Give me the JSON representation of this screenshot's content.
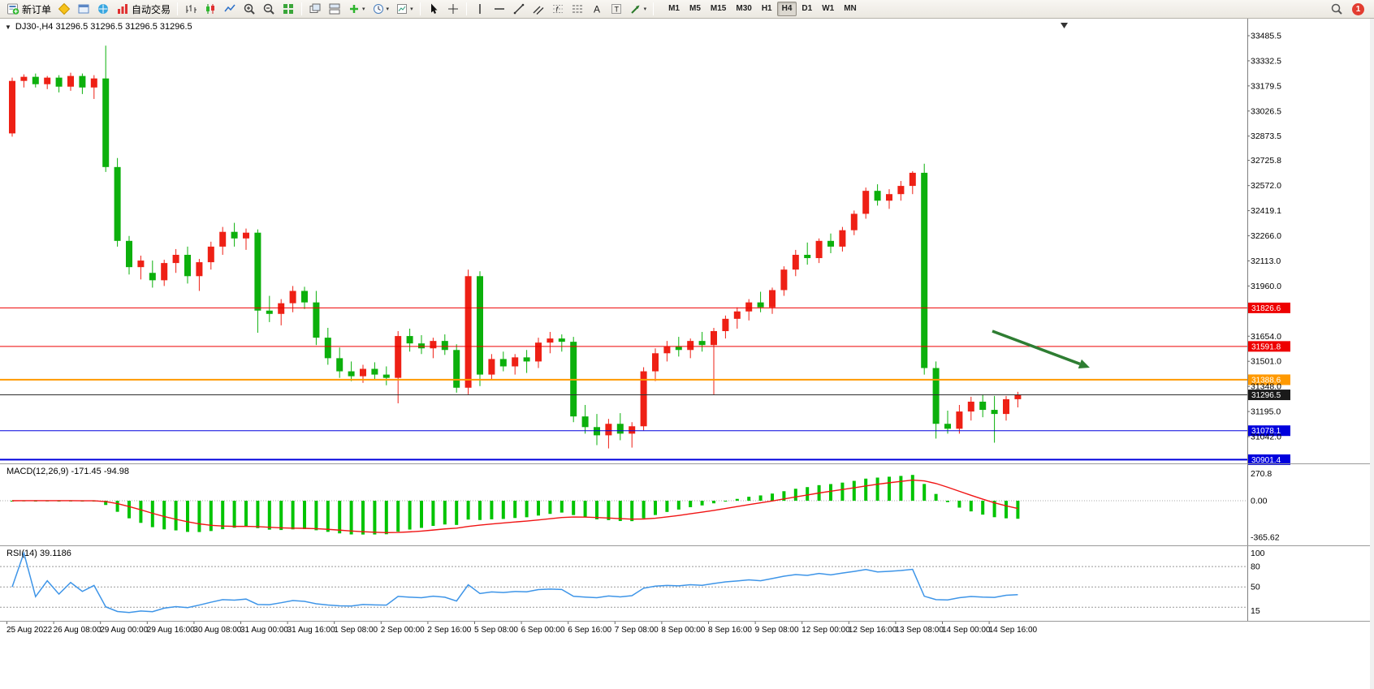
{
  "toolbar": {
    "items": [
      {
        "name": "new-order-button",
        "icon": "new-order",
        "label": "新订单"
      },
      {
        "name": "metaeditor-button",
        "icon": "metaeditor"
      },
      {
        "name": "terminal-button",
        "icon": "terminal"
      },
      {
        "name": "market-watch-button",
        "icon": "market-watch"
      },
      {
        "name": "auto-trading-button",
        "icon": "auto-trading",
        "label": "自动交易"
      },
      {
        "sep": true
      },
      {
        "name": "bar-chart-button",
        "icon": "bars-chart"
      },
      {
        "name": "candle-chart-button",
        "icon": "candles-chart"
      },
      {
        "name": "line-chart-button",
        "icon": "line-chart"
      },
      {
        "name": "zoom-in-button",
        "icon": "zoom-in"
      },
      {
        "name": "zoom-out-button",
        "icon": "zoom-out"
      },
      {
        "name": "tile-windows-button",
        "icon": "tile"
      },
      {
        "sep": true
      },
      {
        "name": "arrange-windows-button",
        "icon": "arrange-1"
      },
      {
        "name": "tile-horizontal-button",
        "icon": "arrange-2"
      },
      {
        "name": "indicators-button",
        "icon": "add-indicator",
        "caret": true
      },
      {
        "name": "periods-button",
        "icon": "periods",
        "caret": true
      },
      {
        "name": "templates-button",
        "icon": "templates",
        "caret": true
      },
      {
        "sep": true
      },
      {
        "name": "cursor-button",
        "icon": "cursor"
      },
      {
        "name": "crosshair-button",
        "icon": "crosshair"
      },
      {
        "sep": true
      },
      {
        "name": "vertical-line-button",
        "icon": "vline"
      },
      {
        "name": "horizontal-line-button",
        "icon": "hline"
      },
      {
        "name": "trendline-button",
        "icon": "trendline"
      },
      {
        "name": "channel-button",
        "icon": "channel"
      },
      {
        "name": "fibonacci-button",
        "icon": "fibo"
      },
      {
        "name": "cycle-lines-button",
        "icon": "grid-lines"
      },
      {
        "name": "text-button",
        "icon": "text-a"
      },
      {
        "name": "text-label-button",
        "icon": "label-t"
      },
      {
        "name": "arrows-button",
        "icon": "arrow-tool",
        "caret": true
      },
      {
        "sep": true
      }
    ],
    "timeframes": {
      "options": [
        "M1",
        "M5",
        "M15",
        "M30",
        "H1",
        "H4",
        "D1",
        "W1",
        "MN"
      ],
      "active": "H4"
    },
    "notification_badge": "1"
  },
  "chart": {
    "symbol_title": "DJ30-,H4 31296.5 31296.5 31296.5 31296.5",
    "colors": {
      "bull": "#ee2015",
      "bear": "#0cb00c",
      "macd_histogram": "#00c400",
      "macd_signal": "#f01414",
      "rsi_line": "#3e95e8",
      "separator": "#9a9a9a",
      "axis_text": "#000000"
    }
  },
  "chart_data": {
    "type": "candlestick",
    "symbol": "DJ30-",
    "timeframe": "H4",
    "price_scale": {
      "top": 33485.5,
      "bottom": 31042.0
    },
    "price_axis_ticks": [
      "33485.5",
      "33332.5",
      "33179.5",
      "33026.5",
      "32873.5",
      "32725.8",
      "32572.0",
      "32419.1",
      "32266.0",
      "32113.0",
      "31960.0",
      "31654.0",
      "31501.0",
      "31348.0",
      "31195.0",
      "31042.0"
    ],
    "time_axis_labels": [
      "25 Aug 2022",
      "26 Aug 08:00",
      "29 Aug 00:00",
      "29 Aug 16:00",
      "30 Aug 08:00",
      "31 Aug 00:00",
      "31 Aug 16:00",
      "1 Sep 08:00",
      "2 Sep 00:00",
      "2 Sep 16:00",
      "5 Sep 08:00",
      "6 Sep 00:00",
      "6 Sep 16:00",
      "7 Sep 08:00",
      "8 Sep 00:00",
      "8 Sep 16:00",
      "9 Sep 08:00",
      "12 Sep 00:00",
      "12 Sep 16:00",
      "13 Sep 08:00",
      "14 Sep 00:00",
      "14 Sep 16:00"
    ],
    "current_price": 31296.5,
    "levels": [
      {
        "label": "31826.6",
        "price": 31826.6,
        "color": "#ee0000",
        "width": 1
      },
      {
        "label": "31591.8",
        "price": 31591.8,
        "color": "#ee0000",
        "width": 1
      },
      {
        "label": "31388.6",
        "price": 31388.6,
        "color": "#ff9900",
        "width": 2
      },
      {
        "label": "31296.5",
        "price": 31296.5,
        "color": "#2f2f2f",
        "width": 1
      },
      {
        "label": "31078.1",
        "price": 31078.1,
        "color": "#0000dd",
        "width": 1
      },
      {
        "label": "30901.4",
        "price": 30901.4,
        "color": "#0000dd",
        "width": 2
      }
    ],
    "candles": [
      [
        32890,
        33230,
        32870,
        33210
      ],
      [
        33210,
        33250,
        33170,
        33235
      ],
      [
        33235,
        33255,
        33170,
        33190
      ],
      [
        33190,
        33240,
        33160,
        33230
      ],
      [
        33230,
        33245,
        33140,
        33175
      ],
      [
        33175,
        33260,
        33150,
        33240
      ],
      [
        33240,
        33255,
        33130,
        33170
      ],
      [
        33170,
        33245,
        33100,
        33225
      ],
      [
        33225,
        33425,
        32655,
        32685
      ],
      [
        32685,
        32740,
        32200,
        32235
      ],
      [
        32235,
        32265,
        32030,
        32075
      ],
      [
        32075,
        32145,
        32000,
        32115
      ],
      [
        32040,
        32115,
        31950,
        31995
      ],
      [
        31995,
        32120,
        31960,
        32100
      ],
      [
        32100,
        32185,
        32040,
        32150
      ],
      [
        32150,
        32200,
        31975,
        32020
      ],
      [
        32020,
        32125,
        31930,
        32105
      ],
      [
        32105,
        32230,
        32060,
        32200
      ],
      [
        32200,
        32320,
        32150,
        32290
      ],
      [
        32290,
        32345,
        32200,
        32250
      ],
      [
        32250,
        32310,
        32180,
        32285
      ],
      [
        32285,
        32305,
        31675,
        31810
      ],
      [
        31810,
        31900,
        31740,
        31790
      ],
      [
        31790,
        31880,
        31720,
        31855
      ],
      [
        31855,
        31960,
        31800,
        31930
      ],
      [
        31930,
        31955,
        31820,
        31860
      ],
      [
        31860,
        31930,
        31600,
        31645
      ],
      [
        31645,
        31705,
        31480,
        31520
      ],
      [
        31520,
        31585,
        31400,
        31440
      ],
      [
        31440,
        31500,
        31380,
        31410
      ],
      [
        31410,
        31480,
        31370,
        31455
      ],
      [
        31455,
        31495,
        31390,
        31420
      ],
      [
        31420,
        31470,
        31355,
        31400
      ],
      [
        31400,
        31685,
        31245,
        31655
      ],
      [
        31655,
        31700,
        31560,
        31610
      ],
      [
        31610,
        31660,
        31545,
        31580
      ],
      [
        31580,
        31645,
        31520,
        31625
      ],
      [
        31625,
        31665,
        31540,
        31570
      ],
      [
        31570,
        31605,
        31310,
        31340
      ],
      [
        31340,
        32060,
        31300,
        32020
      ],
      [
        32020,
        32050,
        31350,
        31420
      ],
      [
        31420,
        31545,
        31390,
        31515
      ],
      [
        31515,
        31560,
        31440,
        31470
      ],
      [
        31470,
        31545,
        31420,
        31525
      ],
      [
        31525,
        31570,
        31430,
        31500
      ],
      [
        31500,
        31645,
        31460,
        31615
      ],
      [
        31615,
        31680,
        31550,
        31640
      ],
      [
        31640,
        31665,
        31560,
        31620
      ],
      [
        31620,
        31650,
        31130,
        31165
      ],
      [
        31165,
        31235,
        31060,
        31100
      ],
      [
        31100,
        31180,
        30990,
        31050
      ],
      [
        31050,
        31150,
        30970,
        31120
      ],
      [
        31120,
        31185,
        31020,
        31060
      ],
      [
        31060,
        31130,
        30975,
        31105
      ],
      [
        31105,
        31465,
        31080,
        31440
      ],
      [
        31440,
        31580,
        31380,
        31550
      ],
      [
        31550,
        31625,
        31500,
        31590
      ],
      [
        31590,
        31650,
        31530,
        31570
      ],
      [
        31570,
        31640,
        31520,
        31625
      ],
      [
        31625,
        31680,
        31560,
        31600
      ],
      [
        31600,
        31705,
        31295,
        31685
      ],
      [
        31685,
        31780,
        31640,
        31760
      ],
      [
        31760,
        31830,
        31700,
        31805
      ],
      [
        31805,
        31880,
        31750,
        31860
      ],
      [
        31860,
        31925,
        31800,
        31830
      ],
      [
        31830,
        31950,
        31790,
        31935
      ],
      [
        31935,
        32080,
        31900,
        32060
      ],
      [
        32060,
        32180,
        32020,
        32150
      ],
      [
        32150,
        32225,
        32090,
        32130
      ],
      [
        32130,
        32250,
        32100,
        32235
      ],
      [
        32235,
        32280,
        32160,
        32200
      ],
      [
        32200,
        32320,
        32170,
        32300
      ],
      [
        32300,
        32420,
        32270,
        32400
      ],
      [
        32400,
        32560,
        32370,
        32540
      ],
      [
        32540,
        32580,
        32450,
        32480
      ],
      [
        32480,
        32550,
        32430,
        32520
      ],
      [
        32520,
        32600,
        32480,
        32570
      ],
      [
        32570,
        32660,
        32520,
        32650
      ],
      [
        32650,
        32705,
        31420,
        31460
      ],
      [
        31460,
        31500,
        31030,
        31120
      ],
      [
        31120,
        31200,
        31060,
        31090
      ],
      [
        31090,
        31235,
        31060,
        31195
      ],
      [
        31195,
        31285,
        31140,
        31255
      ],
      [
        31255,
        31300,
        31160,
        31205
      ],
      [
        31205,
        31290,
        31005,
        31180
      ],
      [
        31180,
        31290,
        31140,
        31270
      ],
      [
        31270,
        31315,
        31220,
        31296.5
      ]
    ],
    "indicators": [
      {
        "type": "MACD",
        "label": "MACD(12,26,9)",
        "values_text": "-171.45 -94.98",
        "full_label": "MACD(12,26,9) -171.45 -94.98",
        "params": [
          12,
          26,
          9
        ],
        "axis_labels": [
          "270.8",
          "0.00",
          "-365.62"
        ],
        "axis_values": [
          270.8,
          0,
          -365.62
        ]
      },
      {
        "type": "RSI",
        "label": "RSI(14)",
        "value_text": "39.1186",
        "full_label": "RSI(14) 39.1186",
        "period": 14,
        "axis_labels": [
          "100",
          "80",
          "50",
          "15"
        ],
        "axis_values": [
          100,
          80,
          50,
          15
        ],
        "level_lines": [
          80,
          50,
          20
        ]
      }
    ],
    "annotations": [
      {
        "type": "arrow",
        "from": [
          1222,
          408
        ],
        "to": [
          1342,
          453
        ],
        "color": "#2e7d32"
      }
    ]
  }
}
